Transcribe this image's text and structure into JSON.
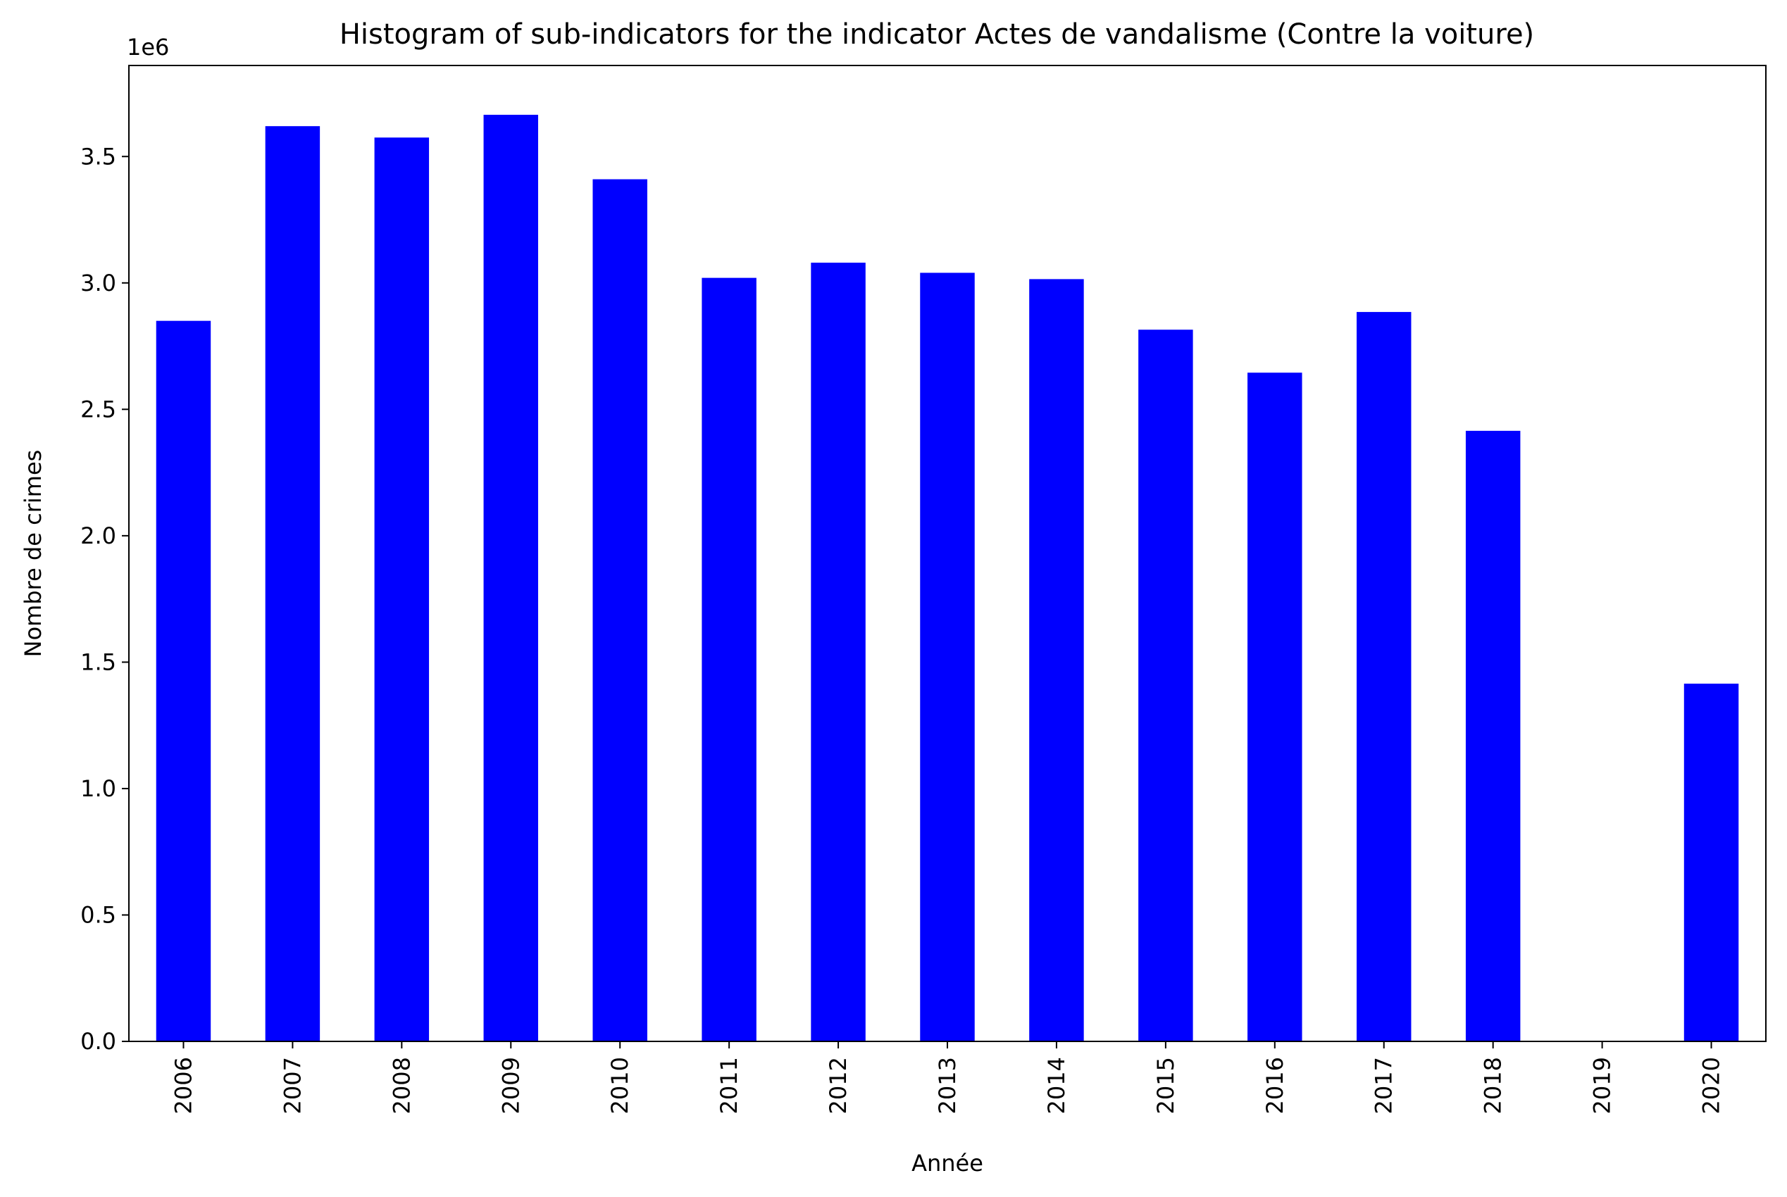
{
  "chart_data": {
    "type": "bar",
    "title": "Histogram of sub-indicators for the indicator Actes de vandalisme (Contre la voiture)",
    "xlabel": "Année",
    "ylabel": "Nombre de crimes",
    "y_offset_label": "1e6",
    "ylim": [
      0,
      3860000
    ],
    "yticks": [
      0,
      500000,
      1000000,
      1500000,
      2000000,
      2500000,
      3000000,
      3500000
    ],
    "ytick_labels": [
      "0.0",
      "0.5",
      "1.0",
      "1.5",
      "2.0",
      "2.5",
      "3.0",
      "3.5"
    ],
    "categories": [
      "2006",
      "2007",
      "2008",
      "2009",
      "2010",
      "2011",
      "2012",
      "2013",
      "2014",
      "2015",
      "2016",
      "2017",
      "2018",
      "2019",
      "2020"
    ],
    "values": [
      2850000,
      3620000,
      3575000,
      3665000,
      3410000,
      3020000,
      3080000,
      3040000,
      3015000,
      2815000,
      2645000,
      2885000,
      2415000,
      0,
      1415000
    ],
    "bar_color": "#0000ff",
    "grid": false,
    "legend": "none"
  }
}
